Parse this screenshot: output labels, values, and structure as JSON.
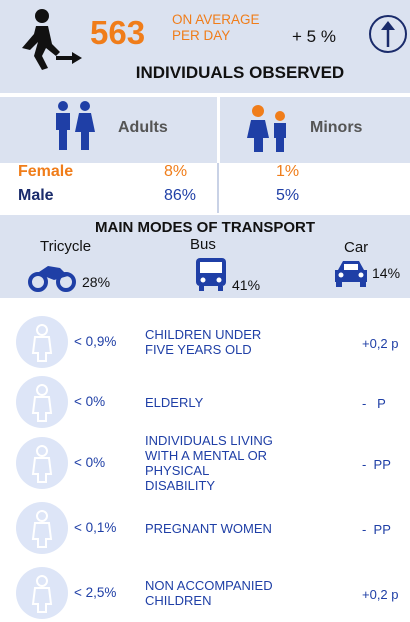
{
  "header": {
    "count": "563",
    "per_day_line1": "ON AVERAGE",
    "per_day_line2": "PER DAY",
    "trend": "+ 5 %",
    "title": "INDIVIDUALS OBSERVED"
  },
  "demographics": {
    "columns": [
      "Adults",
      "Minors"
    ],
    "rows": [
      {
        "label": "Female",
        "values": [
          "8%",
          "1%"
        ]
      },
      {
        "label": "Male",
        "values": [
          "86%",
          "5%"
        ]
      }
    ]
  },
  "transport": {
    "title": "MAIN MODES OF TRANSPORT",
    "modes": [
      {
        "name": "Tricycle",
        "share": "28%"
      },
      {
        "name": "Bus",
        "share": "41%"
      },
      {
        "name": "Car",
        "share": "14%"
      }
    ]
  },
  "groups": [
    {
      "share": "< 0,9%",
      "label": "CHILDREN UNDER FIVE YEARS OLD",
      "change": "+0,2 p"
    },
    {
      "share": "< 0%",
      "label": "ELDERLY",
      "change": "-   P"
    },
    {
      "share": "< 0%",
      "label": "INDIVIDUALS LIVING WITH A MENTAL OR PHYSICAL DISABILITY",
      "change": "-  PP"
    },
    {
      "share": "< 0,1%",
      "label": "PREGNANT WOMEN",
      "change": "-  PP"
    },
    {
      "share": "< 2,5%",
      "label": "NON ACCOMPANIED CHILDREN",
      "change": "+0,2 p"
    }
  ]
}
